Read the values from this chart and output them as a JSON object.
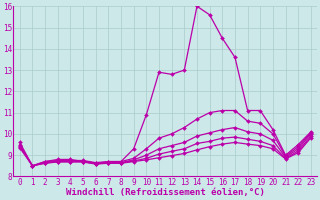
{
  "xlabel": "Windchill (Refroidissement éolien,°C)",
  "xlim": [
    -0.5,
    23.5
  ],
  "ylim": [
    8.0,
    16.0
  ],
  "xticks": [
    0,
    1,
    2,
    3,
    4,
    5,
    6,
    7,
    8,
    9,
    10,
    11,
    12,
    13,
    14,
    15,
    16,
    17,
    18,
    19,
    20,
    21,
    22,
    23
  ],
  "yticks": [
    8,
    9,
    10,
    11,
    12,
    13,
    14,
    15,
    16
  ],
  "background_color": "#cce8e8",
  "line_color": "#bb00aa",
  "grid_color": "#aacccc",
  "lines": [
    [
      9.6,
      8.5,
      8.7,
      8.8,
      8.8,
      8.7,
      8.6,
      8.7,
      8.7,
      9.3,
      10.9,
      12.9,
      12.8,
      13.0,
      16.0,
      15.6,
      14.5,
      13.6,
      11.1,
      11.1,
      10.2,
      9.0,
      9.5,
      10.1
    ],
    [
      9.5,
      8.5,
      8.7,
      8.75,
      8.75,
      8.75,
      8.65,
      8.7,
      8.7,
      8.85,
      9.3,
      9.8,
      10.0,
      10.3,
      10.7,
      11.0,
      11.1,
      11.1,
      10.6,
      10.5,
      10.0,
      8.95,
      9.4,
      10.05
    ],
    [
      9.45,
      8.5,
      8.65,
      8.72,
      8.72,
      8.72,
      8.62,
      8.65,
      8.65,
      8.78,
      9.0,
      9.3,
      9.45,
      9.6,
      9.9,
      10.05,
      10.2,
      10.3,
      10.1,
      10.0,
      9.7,
      8.9,
      9.3,
      10.0
    ],
    [
      9.4,
      8.5,
      8.63,
      8.7,
      8.7,
      8.7,
      8.6,
      8.63,
      8.63,
      8.73,
      8.85,
      9.05,
      9.18,
      9.3,
      9.55,
      9.65,
      9.8,
      9.85,
      9.75,
      9.65,
      9.45,
      8.85,
      9.2,
      9.9
    ],
    [
      9.35,
      8.5,
      8.62,
      8.68,
      8.68,
      8.68,
      8.58,
      8.62,
      8.62,
      8.7,
      8.78,
      8.88,
      8.98,
      9.08,
      9.25,
      9.4,
      9.52,
      9.6,
      9.52,
      9.45,
      9.3,
      8.82,
      9.12,
      9.82
    ]
  ],
  "marker": "D",
  "markersize": 2.0,
  "linewidth": 0.9,
  "tick_fontsize": 5.5,
  "label_fontsize": 6.5
}
